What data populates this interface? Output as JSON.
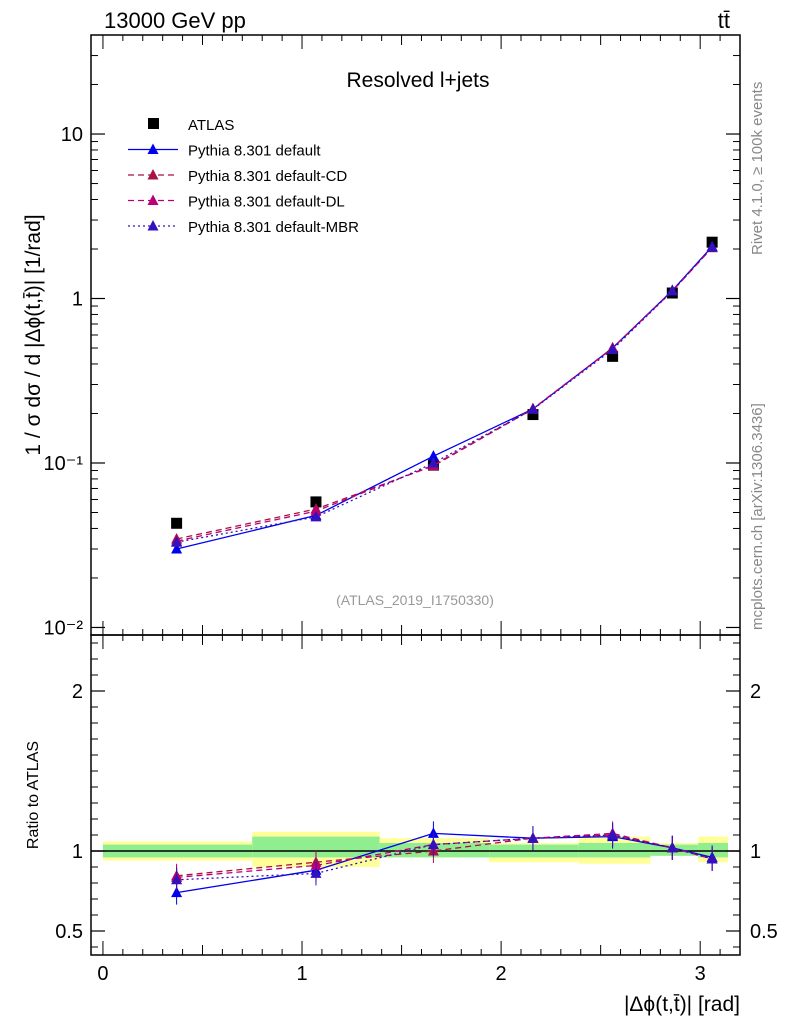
{
  "header": {
    "energy_label": "13000 GeV pp",
    "process_label": "tt̄"
  },
  "side_labels": {
    "rivet": "Rivet 4.1.0, ≥ 100k events",
    "mcplots": "mcplots.cern.ch [arXiv:1306.3436]"
  },
  "chart_data": [
    {
      "type": "line",
      "panel": "main",
      "title": "Resolved l+jets",
      "analysis_label": "(ATLAS_2019_I1750330)",
      "ylabel": "1 / σ dσ / d |Δϕ(t,t̄)| [1/rad]",
      "yscale": "log",
      "ylim": [
        0.009,
        40
      ],
      "xlim": [
        -0.06,
        3.2
      ],
      "ytick_labels": [
        "10⁻²",
        "10⁻¹",
        "1",
        "10"
      ],
      "x": [
        0.37,
        1.07,
        1.66,
        2.16,
        2.56,
        2.86,
        3.06
      ],
      "series": [
        {
          "name": "ATLAS",
          "values": [
            0.043,
            0.058,
            0.097,
            0.197,
            0.445,
            1.08,
            2.2
          ],
          "color": "#000000",
          "marker": "square"
        },
        {
          "name": "Pythia 8.301 default",
          "values": [
            0.03,
            0.048,
            0.11,
            0.213,
            0.5,
            1.12,
            2.07
          ],
          "color": "#0000ee",
          "marker": "triangle",
          "style": "solid"
        },
        {
          "name": "Pythia 8.301 default-CD",
          "values": [
            0.0345,
            0.0525,
            0.096,
            0.213,
            0.5,
            1.11,
            2.04
          ],
          "color": "#aa1144",
          "marker": "triangle",
          "style": "dashed"
        },
        {
          "name": "Pythia 8.301 default-DL",
          "values": [
            0.0335,
            0.051,
            0.097,
            0.214,
            0.5,
            1.11,
            2.04
          ],
          "color": "#bb0077",
          "marker": "triangle",
          "style": "dashed"
        },
        {
          "name": "Pythia 8.301 default-MBR",
          "values": [
            0.033,
            0.047,
            0.1,
            0.212,
            0.49,
            1.11,
            2.05
          ],
          "color": "#3311bb",
          "marker": "triangle",
          "style": "dotted"
        }
      ]
    },
    {
      "type": "line",
      "panel": "ratio",
      "ylabel": "Ratio to ATLAS",
      "xlabel": "|Δϕ(t,t̄)| [rad]",
      "ylim": [
        0.35,
        2.35
      ],
      "xlim": [
        -0.06,
        3.2
      ],
      "ytick_labels": [
        "0.5",
        "1",
        "2"
      ],
      "xtick_labels": [
        "0",
        "1",
        "2",
        "3"
      ],
      "x": [
        0.37,
        1.07,
        1.66,
        2.16,
        2.56,
        2.86,
        3.06
      ],
      "uncertainty_bands": {
        "bin_edges": [
          0,
          0.75,
          1.39,
          1.94,
          2.39,
          2.75,
          2.99,
          3.14
        ],
        "green_low": [
          0.96,
          0.96,
          0.96,
          0.96,
          0.96,
          0.97,
          0.96
        ],
        "green_high": [
          1.04,
          1.09,
          1.05,
          1.04,
          1.05,
          1.04,
          1.05
        ],
        "yellow_low": [
          0.94,
          0.9,
          0.96,
          0.93,
          0.92,
          0.97,
          0.93
        ],
        "yellow_high": [
          1.06,
          1.12,
          1.08,
          1.05,
          1.09,
          1.05,
          1.09
        ],
        "green_color": "#90ee90",
        "yellow_color": "#ffff99"
      },
      "series": [
        {
          "name": "Pythia 8.301 default",
          "values": [
            0.74,
            0.88,
            1.11,
            1.08,
            1.09,
            1.02,
            0.96
          ],
          "color": "#0000ee",
          "style": "solid"
        },
        {
          "name": "Pythia 8.301 default-CD",
          "values": [
            0.845,
            0.93,
            1.0,
            1.08,
            1.1,
            1.02,
            0.95
          ],
          "color": "#aa1144",
          "style": "dashed"
        },
        {
          "name": "Pythia 8.301 default-DL",
          "values": [
            0.835,
            0.91,
            1.04,
            1.08,
            1.11,
            1.02,
            0.95
          ],
          "color": "#bb0077",
          "style": "dashed"
        },
        {
          "name": "Pythia 8.301 default-MBR",
          "values": [
            0.82,
            0.86,
            1.04,
            1.08,
            1.1,
            1.02,
            0.95
          ],
          "color": "#3311bb",
          "style": "dotted"
        }
      ]
    }
  ]
}
